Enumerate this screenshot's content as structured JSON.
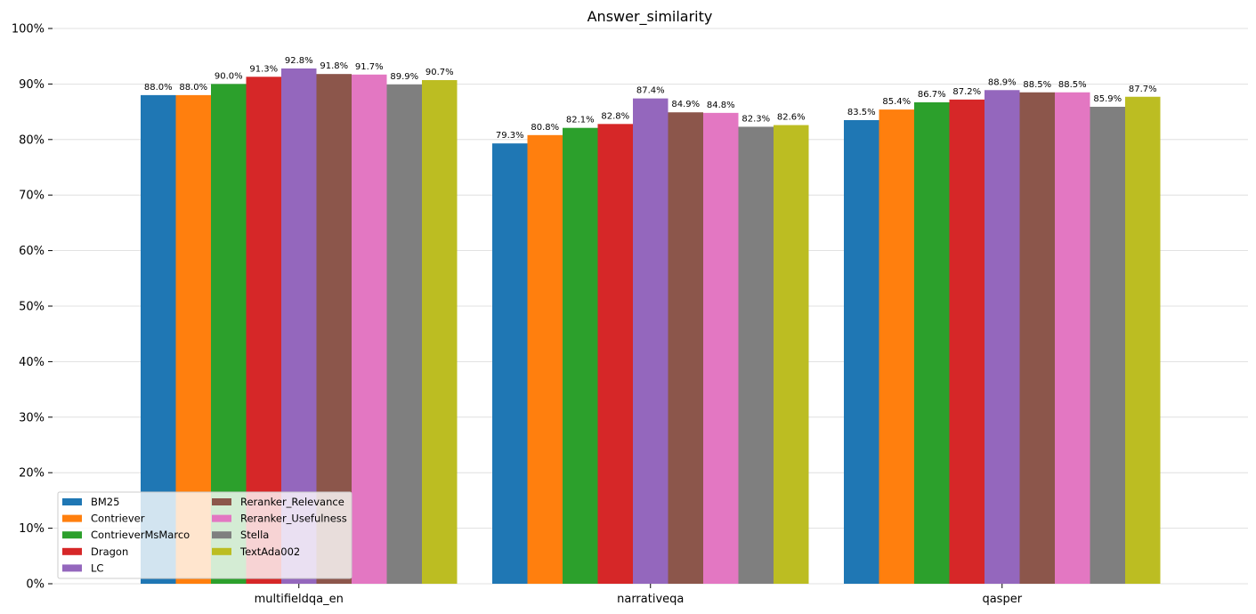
{
  "chart_data": {
    "type": "bar",
    "title": "Answer_similarity",
    "xlabel": "",
    "ylabel": "",
    "ylim": [
      0,
      100
    ],
    "ytick_values": [
      0,
      10,
      20,
      30,
      40,
      50,
      60,
      70,
      80,
      90,
      100
    ],
    "ytick_labels": [
      "0%",
      "10%",
      "20%",
      "30%",
      "40%",
      "50%",
      "60%",
      "70%",
      "80%",
      "90%",
      "100%"
    ],
    "grid": true,
    "legend_position": "lower-left",
    "categories": [
      "multifieldqa_en",
      "narrativeqa",
      "qasper"
    ],
    "series": [
      {
        "name": "BM25",
        "color": "#1f77b4",
        "values": [
          88.0,
          79.3,
          83.5
        ],
        "labels": [
          "88.0%",
          "79.3%",
          "83.5%"
        ]
      },
      {
        "name": "Contriever",
        "color": "#ff7f0e",
        "values": [
          88.0,
          80.8,
          85.4
        ],
        "labels": [
          "88.0%",
          "80.8%",
          "85.4%"
        ]
      },
      {
        "name": "ContrieverMsMarco",
        "color": "#2ca02c",
        "values": [
          90.0,
          82.1,
          86.7
        ],
        "labels": [
          "90.0%",
          "82.1%",
          "86.7%"
        ]
      },
      {
        "name": "Dragon",
        "color": "#d62728",
        "values": [
          91.3,
          82.8,
          87.2
        ],
        "labels": [
          "91.3%",
          "82.8%",
          "87.2%"
        ]
      },
      {
        "name": "LC",
        "color": "#9467bd",
        "values": [
          92.8,
          87.4,
          88.9
        ],
        "labels": [
          "92.8%",
          "87.4%",
          "88.9%"
        ]
      },
      {
        "name": "Reranker_Relevance",
        "color": "#8c564b",
        "values": [
          91.8,
          84.9,
          88.5
        ],
        "labels": [
          "91.8%",
          "84.9%",
          "88.5%"
        ]
      },
      {
        "name": "Reranker_Usefulness",
        "color": "#e377c2",
        "values": [
          91.7,
          84.8,
          88.5
        ],
        "labels": [
          "91.7%",
          "84.8%",
          "88.5%"
        ]
      },
      {
        "name": "Stella",
        "color": "#7f7f7f",
        "values": [
          89.9,
          82.3,
          85.9
        ],
        "labels": [
          "89.9%",
          "82.3%",
          "85.9%"
        ]
      },
      {
        "name": "TextAda002",
        "color": "#bcbd22",
        "values": [
          90.7,
          82.6,
          87.7
        ],
        "labels": [
          "90.7%",
          "82.6%",
          "87.7%"
        ]
      }
    ]
  }
}
